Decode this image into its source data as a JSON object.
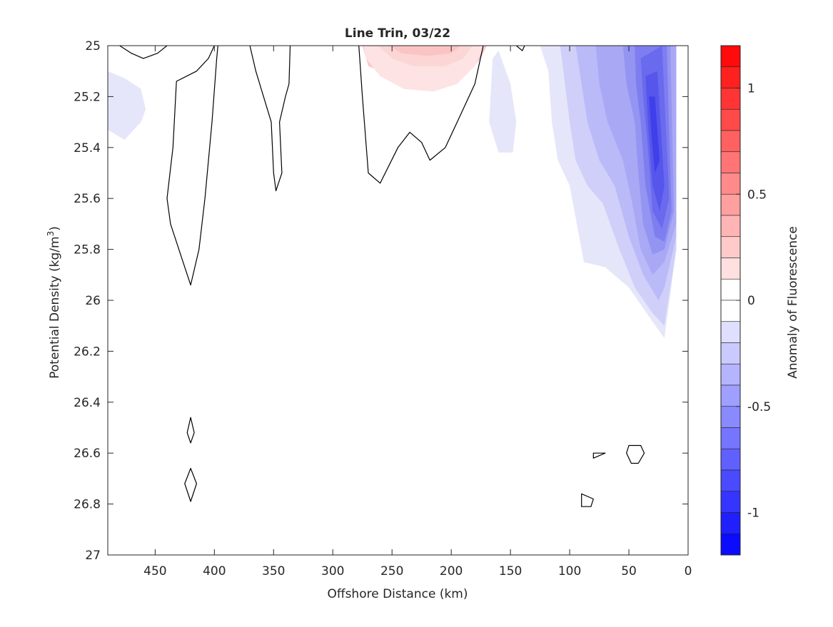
{
  "chart_data": {
    "type": "contour",
    "title": "Line Trin, 03/22",
    "xlabel": "Offshore Distance (km)",
    "ylabel": "Potential Density (kg/m",
    "ylabel_superscript": "3",
    "ylabel_close": ")",
    "colorbar_label": "Anomaly of Fluorescence",
    "x_axis": {
      "range": [
        490,
        0
      ],
      "reversed": true,
      "ticks": [
        450,
        400,
        350,
        300,
        250,
        200,
        150,
        100,
        50,
        0
      ]
    },
    "y_axis": {
      "range": [
        25,
        27
      ],
      "reversed": true,
      "ticks": [
        "25",
        "25.2",
        "25.4",
        "25.6",
        "25.8",
        "26",
        "26.2",
        "26.4",
        "26.6",
        "26.8",
        "27"
      ]
    },
    "colorbar": {
      "range": [
        -1.2,
        1.2
      ],
      "levels": 24,
      "step": 0.1,
      "ticks": [
        "1",
        "0.5",
        "0",
        "-0.5",
        "-1"
      ],
      "tick_values": [
        1,
        0.5,
        0,
        -0.5,
        -1
      ]
    },
    "regions": [
      {
        "name": "surface-positive-anomaly",
        "level": 0.3,
        "fill": "#fcc8c8",
        "points": [
          [
            275,
            25.0
          ],
          [
            270,
            25.08
          ],
          [
            250,
            25.12
          ],
          [
            230,
            25.14
          ],
          [
            205,
            25.14
          ],
          [
            185,
            25.1
          ],
          [
            175,
            25.05
          ],
          [
            170,
            25.0
          ]
        ]
      },
      {
        "name": "surface-positive-anomaly",
        "level": 0.1,
        "fill": "#fde3e3",
        "points": [
          [
            274,
            25.0
          ],
          [
            272,
            25.05
          ],
          [
            260,
            25.12
          ],
          [
            240,
            25.17
          ],
          [
            215,
            25.18
          ],
          [
            195,
            25.15
          ],
          [
            180,
            25.08
          ],
          [
            172,
            25.0
          ]
        ]
      },
      {
        "name": "surface-positive-anomaly",
        "level": 0.2,
        "fill": "#fcd5d5",
        "points": [
          [
            262,
            25.0
          ],
          [
            250,
            25.05
          ],
          [
            232,
            25.08
          ],
          [
            205,
            25.08
          ],
          [
            190,
            25.05
          ],
          [
            182,
            25.0
          ]
        ]
      },
      {
        "name": "surface-positive-anomaly",
        "level": 0.3,
        "fill": "#fac4c4",
        "points": [
          [
            252,
            25.0
          ],
          [
            242,
            25.03
          ],
          [
            220,
            25.04
          ],
          [
            200,
            25.03
          ],
          [
            192,
            25.0
          ]
        ]
      },
      {
        "name": "offshore-negative-patch",
        "level": -0.1,
        "fill": "#e6e6fa",
        "points": [
          [
            490,
            25.1
          ],
          [
            475,
            25.13
          ],
          [
            462,
            25.17
          ],
          [
            458,
            25.25
          ],
          [
            462,
            25.3
          ],
          [
            476,
            25.37
          ],
          [
            490,
            25.33
          ]
        ]
      },
      {
        "name": "midshelf-negative-patch",
        "level": -0.1,
        "fill": "#e6e6fa",
        "points": [
          [
            165,
            25.05
          ],
          [
            160,
            25.02
          ],
          [
            150,
            25.15
          ],
          [
            145,
            25.3
          ],
          [
            148,
            25.42
          ],
          [
            160,
            25.42
          ],
          [
            168,
            25.3
          ]
        ]
      },
      {
        "name": "nearshore-negative-core",
        "level": -0.1,
        "fill": "#e6e6fa",
        "points": [
          [
            125,
            25.0
          ],
          [
            118,
            25.1
          ],
          [
            115,
            25.3
          ],
          [
            110,
            25.45
          ],
          [
            100,
            25.55
          ],
          [
            92,
            25.75
          ],
          [
            88,
            25.85
          ],
          [
            70,
            25.87
          ],
          [
            50,
            25.95
          ],
          [
            35,
            26.05
          ],
          [
            20,
            26.15
          ],
          [
            10,
            25.8
          ],
          [
            10,
            25.0
          ]
        ]
      },
      {
        "name": "nearshore-negative-core",
        "level": -0.2,
        "fill": "#cfcffa",
        "points": [
          [
            108,
            25.0
          ],
          [
            104,
            25.15
          ],
          [
            100,
            25.3
          ],
          [
            95,
            25.45
          ],
          [
            85,
            25.55
          ],
          [
            72,
            25.62
          ],
          [
            58,
            25.8
          ],
          [
            45,
            25.95
          ],
          [
            30,
            26.05
          ],
          [
            20,
            26.1
          ],
          [
            10,
            25.8
          ],
          [
            10,
            25.0
          ]
        ]
      },
      {
        "name": "nearshore-negative-core",
        "level": -0.3,
        "fill": "#babaf8",
        "points": [
          [
            95,
            25.0
          ],
          [
            90,
            25.15
          ],
          [
            85,
            25.3
          ],
          [
            75,
            25.45
          ],
          [
            62,
            25.55
          ],
          [
            50,
            25.75
          ],
          [
            38,
            25.9
          ],
          [
            25,
            26.0
          ],
          [
            20,
            25.95
          ],
          [
            10,
            25.75
          ],
          [
            10,
            25.0
          ]
        ]
      },
      {
        "name": "nearshore-negative-core",
        "level": -0.4,
        "fill": "#a8a8f5",
        "points": [
          [
            78,
            25.0
          ],
          [
            75,
            25.15
          ],
          [
            68,
            25.3
          ],
          [
            55,
            25.45
          ],
          [
            48,
            25.6
          ],
          [
            40,
            25.8
          ],
          [
            30,
            25.9
          ],
          [
            20,
            25.85
          ],
          [
            10,
            25.7
          ],
          [
            10,
            25.0
          ]
        ]
      },
      {
        "name": "nearshore-negative-core",
        "level": -0.5,
        "fill": "#9494f2",
        "points": [
          [
            55,
            25.0
          ],
          [
            52,
            25.15
          ],
          [
            45,
            25.3
          ],
          [
            42,
            25.5
          ],
          [
            38,
            25.7
          ],
          [
            30,
            25.82
          ],
          [
            20,
            25.8
          ],
          [
            12,
            25.65
          ],
          [
            15,
            25.0
          ]
        ]
      },
      {
        "name": "nearshore-negative-core",
        "level": -0.6,
        "fill": "#7e7ef0",
        "points": [
          [
            45,
            25.0
          ],
          [
            44,
            25.15
          ],
          [
            40,
            25.3
          ],
          [
            36,
            25.55
          ],
          [
            28,
            25.75
          ],
          [
            20,
            25.77
          ],
          [
            14,
            25.65
          ],
          [
            18,
            25.0
          ]
        ]
      },
      {
        "name": "nearshore-negative-core",
        "level": -0.7,
        "fill": "#6a6aee",
        "points": [
          [
            40,
            25.05
          ],
          [
            38,
            25.2
          ],
          [
            34,
            25.4
          ],
          [
            30,
            25.65
          ],
          [
            22,
            25.72
          ],
          [
            16,
            25.6
          ],
          [
            22,
            25.0
          ]
        ]
      },
      {
        "name": "nearshore-negative-core",
        "level": -0.8,
        "fill": "#5656ec",
        "points": [
          [
            36,
            25.12
          ],
          [
            34,
            25.3
          ],
          [
            30,
            25.55
          ],
          [
            24,
            25.65
          ],
          [
            20,
            25.55
          ],
          [
            26,
            25.1
          ]
        ]
      },
      {
        "name": "nearshore-negative-core",
        "level": -0.9,
        "fill": "#4040ea",
        "points": [
          [
            33,
            25.2
          ],
          [
            31,
            25.35
          ],
          [
            28,
            25.5
          ],
          [
            24,
            25.45
          ],
          [
            28,
            25.2
          ]
        ]
      }
    ],
    "zero_contours": [
      {
        "closed": false,
        "points": [
          [
            480,
            25.0
          ],
          [
            470,
            25.03
          ],
          [
            460,
            25.05
          ],
          [
            448,
            25.03
          ],
          [
            440,
            25.0
          ]
        ]
      },
      {
        "closed": false,
        "points": [
          [
            400,
            25.0
          ],
          [
            405,
            25.05
          ],
          [
            415,
            25.1
          ],
          [
            432,
            25.14
          ],
          [
            435,
            25.4
          ],
          [
            440,
            25.6
          ],
          [
            437,
            25.7
          ],
          [
            430,
            25.8
          ],
          [
            420,
            25.94
          ],
          [
            413,
            25.8
          ],
          [
            408,
            25.6
          ],
          [
            402,
            25.3
          ],
          [
            398,
            25.05
          ],
          [
            397,
            25.0
          ]
        ]
      },
      {
        "closed": false,
        "points": [
          [
            370,
            25.0
          ],
          [
            365,
            25.1
          ],
          [
            352,
            25.3
          ],
          [
            350,
            25.5
          ],
          [
            348,
            25.57
          ],
          [
            343,
            25.5
          ],
          [
            345,
            25.3
          ],
          [
            340,
            25.2
          ],
          [
            337,
            25.15
          ],
          [
            336,
            25.0
          ]
        ]
      },
      {
        "closed": false,
        "points": [
          [
            278,
            25.0
          ],
          [
            275,
            25.2
          ],
          [
            270,
            25.5
          ],
          [
            260,
            25.54
          ],
          [
            245,
            25.4
          ],
          [
            235,
            25.34
          ],
          [
            225,
            25.38
          ],
          [
            218,
            25.45
          ],
          [
            205,
            25.4
          ],
          [
            195,
            25.3
          ],
          [
            180,
            25.15
          ],
          [
            173,
            25.0
          ]
        ]
      },
      {
        "closed": false,
        "points": [
          [
            145,
            25.0
          ],
          [
            140,
            25.02
          ],
          [
            138,
            25.0
          ]
        ]
      },
      {
        "closed": true,
        "points": [
          [
            420,
            26.46
          ],
          [
            417,
            26.52
          ],
          [
            420,
            26.56
          ],
          [
            423,
            26.52
          ]
        ]
      },
      {
        "closed": true,
        "points": [
          [
            420,
            26.66
          ],
          [
            415,
            26.72
          ],
          [
            420,
            26.79
          ],
          [
            425,
            26.72
          ]
        ]
      },
      {
        "closed": true,
        "points": [
          [
            80,
            26.6
          ],
          [
            70,
            26.6
          ],
          [
            80,
            26.62
          ]
        ]
      },
      {
        "closed": true,
        "points": [
          [
            50,
            26.57
          ],
          [
            40,
            26.57
          ],
          [
            37,
            26.6
          ],
          [
            42,
            26.64
          ],
          [
            48,
            26.64
          ],
          [
            52,
            26.6
          ]
        ]
      },
      {
        "closed": true,
        "points": [
          [
            90,
            26.76
          ],
          [
            80,
            26.78
          ],
          [
            82,
            26.81
          ],
          [
            90,
            26.81
          ]
        ]
      }
    ],
    "grid": false
  },
  "colors": {
    "positive_max": "#ff0000",
    "negative_max": "#0000ff",
    "contour_line": "#000000",
    "axis": "#262626"
  }
}
